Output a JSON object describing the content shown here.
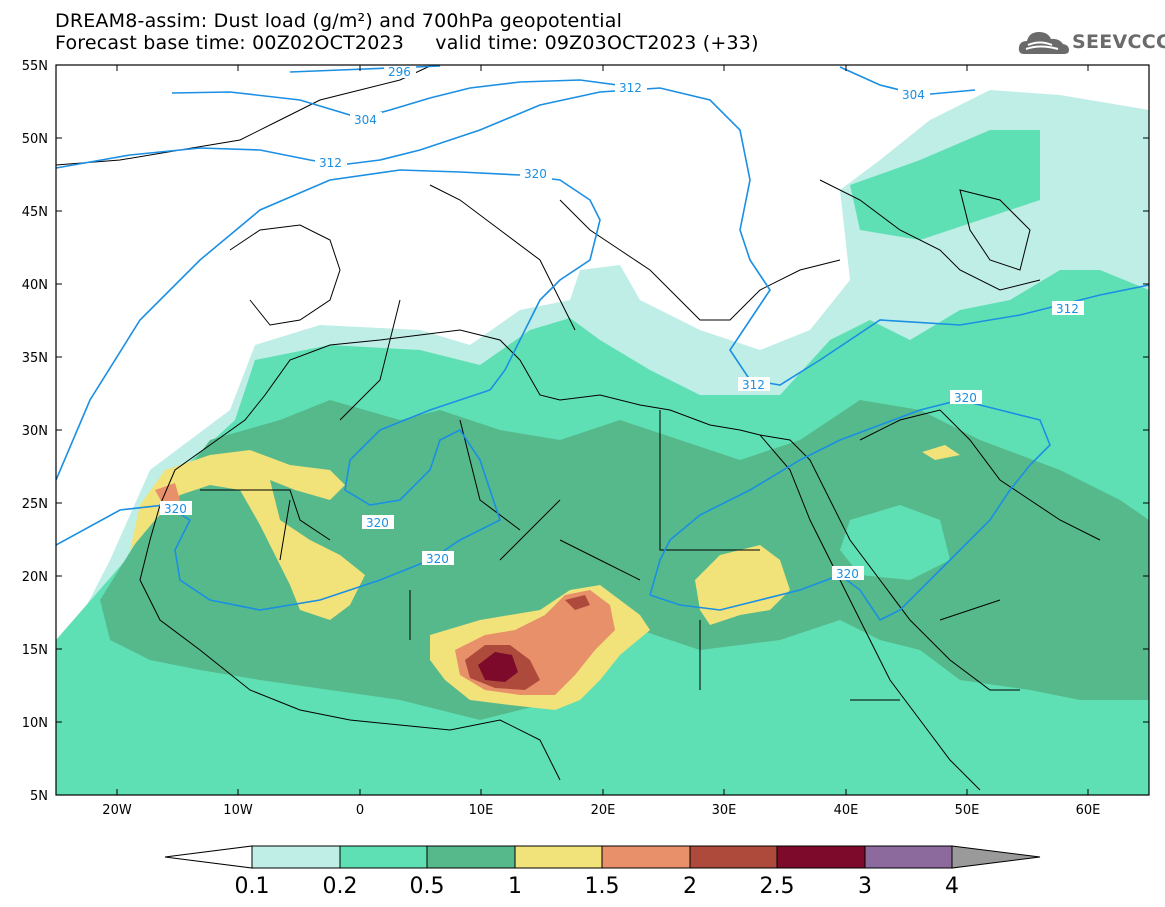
{
  "title_line1": "DREAM8-assim: Dust load (g/m²) and 700hPa geopotential",
  "title_line2": "Forecast base time: 00Z02OCT2023     valid time: 09Z03OCT2023 (+33)",
  "logo_text": "SEEVCCC",
  "lat_labels": [
    "55N",
    "50N",
    "45N",
    "40N",
    "35N",
    "30N",
    "25N",
    "20N",
    "15N",
    "10N",
    "5N"
  ],
  "lon_labels": [
    "20W",
    "10W",
    "0",
    "10E",
    "20E",
    "30E",
    "40E",
    "50E",
    "60E"
  ],
  "contour_labels": [
    "296",
    "304",
    "304",
    "312",
    "312",
    "312",
    "312",
    "320",
    "320",
    "320",
    "320",
    "320",
    "320"
  ],
  "colorbar": {
    "colors": [
      "#bfeee6",
      "#5fe0b4",
      "#56b98c",
      "#f1e27a",
      "#e8906a",
      "#ad4a3c",
      "#7d0a2a",
      "#8c6a9e",
      "#9a9a9a"
    ],
    "labels": [
      "0.1",
      "0.2",
      "0.5",
      "1",
      "1.5",
      "2",
      "2.5",
      "3",
      "4"
    ]
  }
}
